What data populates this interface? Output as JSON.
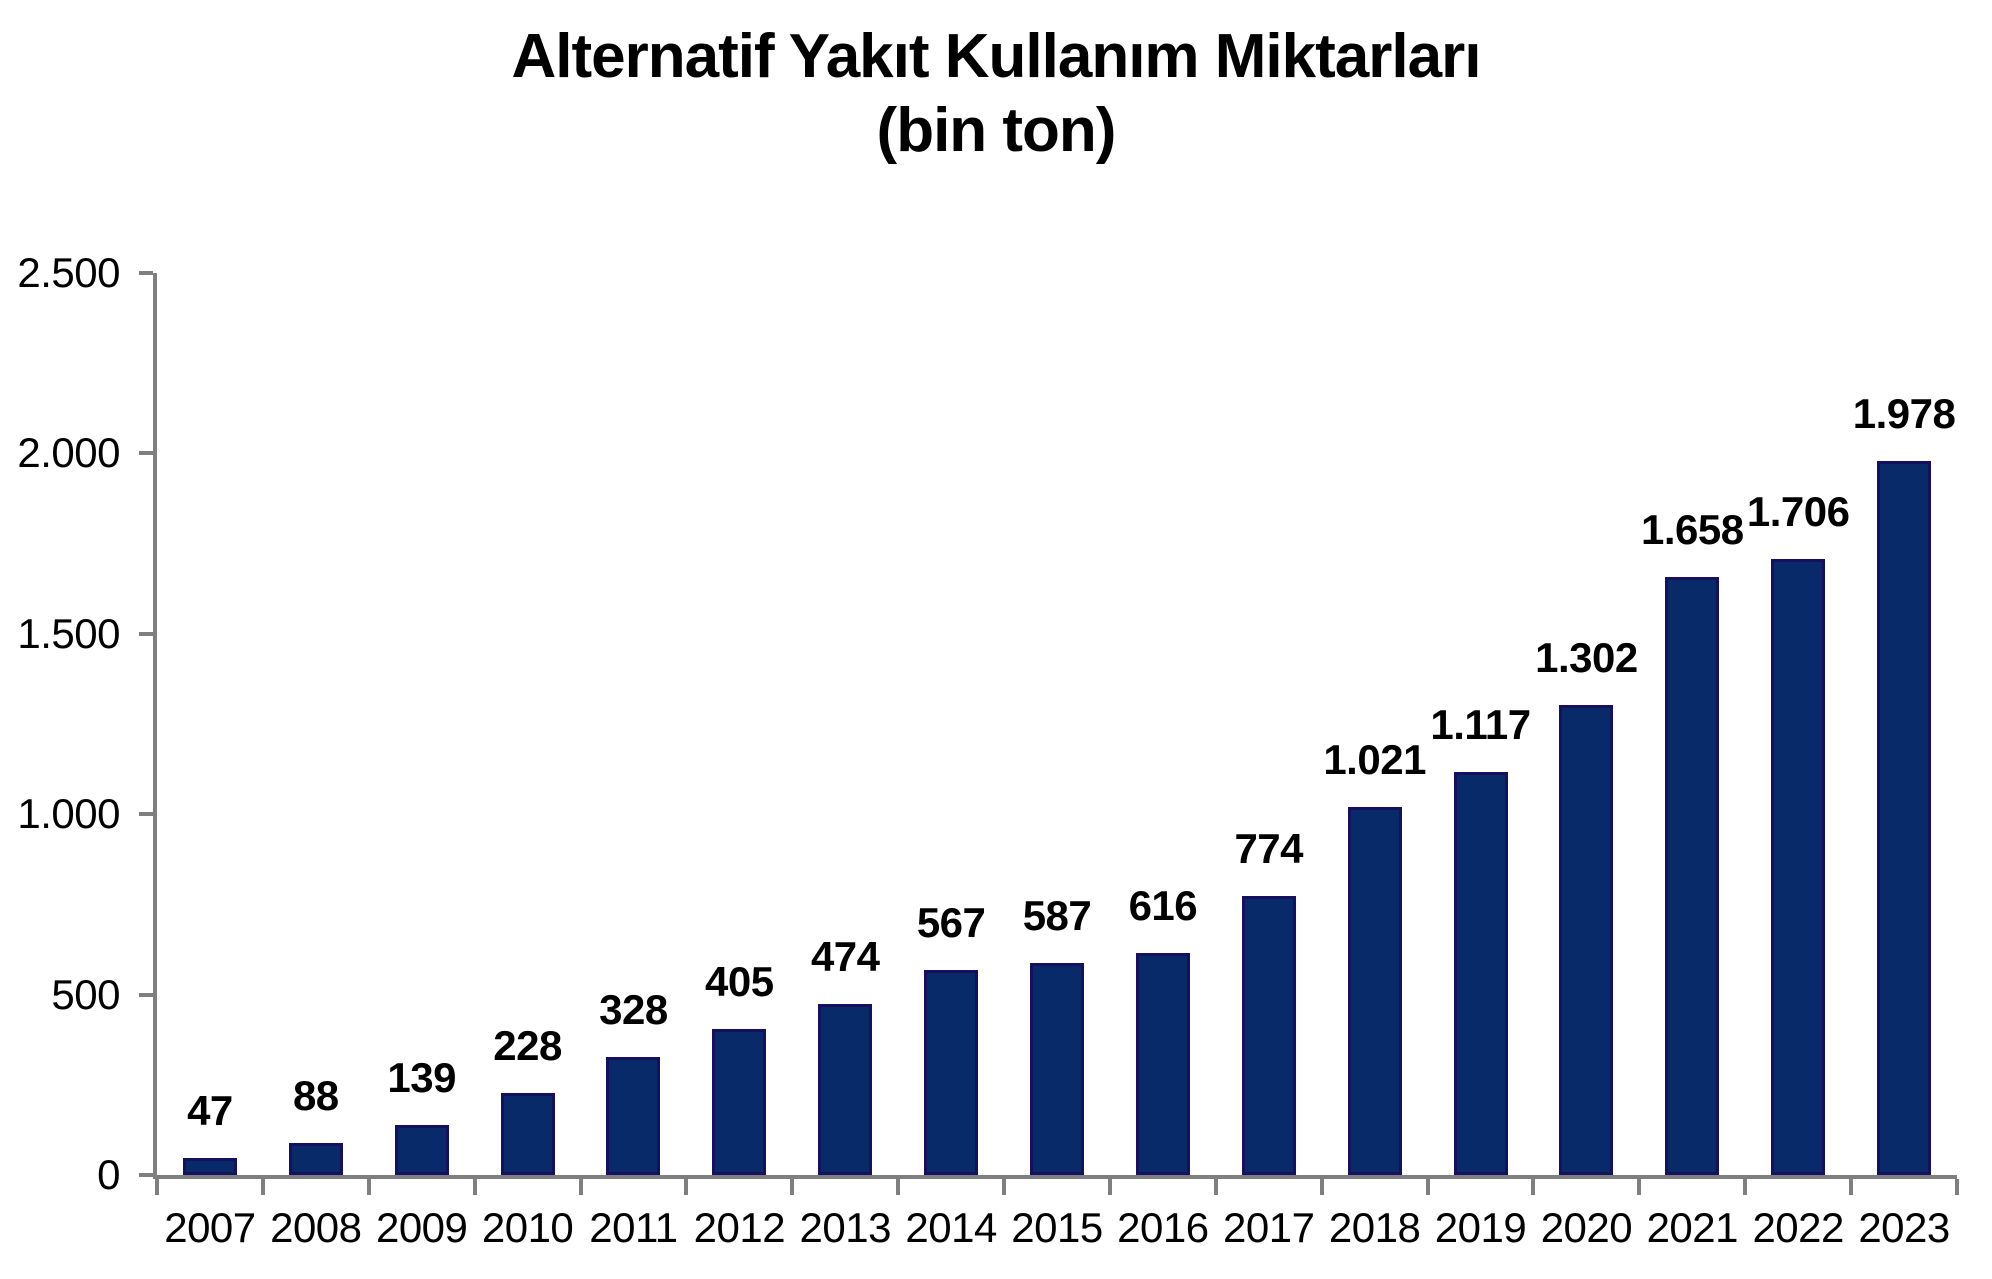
{
  "title": {
    "line1": "Alternatif Yakıt Kullanım Miktarları",
    "line2": "(bin ton)"
  },
  "chart_data": {
    "type": "bar",
    "title": "Alternatif Yakıt Kullanım Miktarları (bin ton)",
    "xlabel": "",
    "ylabel": "",
    "categories": [
      "2007",
      "2008",
      "2009",
      "2010",
      "2011",
      "2012",
      "2013",
      "2014",
      "2015",
      "2016",
      "2017",
      "2018",
      "2019",
      "2020",
      "2021",
      "2022",
      "2023"
    ],
    "values": [
      47,
      88,
      139,
      228,
      328,
      405,
      474,
      567,
      587,
      616,
      774,
      1021,
      1117,
      1302,
      1658,
      1706,
      1978
    ],
    "value_labels": [
      "47",
      "88",
      "139",
      "228",
      "328",
      "405",
      "474",
      "567",
      "587",
      "616",
      "774",
      "1.021",
      "1.117",
      "1.302",
      "1.658",
      "1.706",
      "1.978"
    ],
    "ylim": [
      0,
      2500
    ],
    "y_ticks": [
      {
        "value": 0,
        "label": "0"
      },
      {
        "value": 500,
        "label": "500"
      },
      {
        "value": 1000,
        "label": "1.000"
      },
      {
        "value": 1500,
        "label": "1.500"
      },
      {
        "value": 2000,
        "label": "2.000"
      },
      {
        "value": 2500,
        "label": "2.500"
      }
    ],
    "grid": false,
    "legend": "none",
    "colors": {
      "bar_fill": "#082a68",
      "bar_border": "#151060",
      "axis": "#7f7f7f",
      "text": "#000000"
    }
  }
}
